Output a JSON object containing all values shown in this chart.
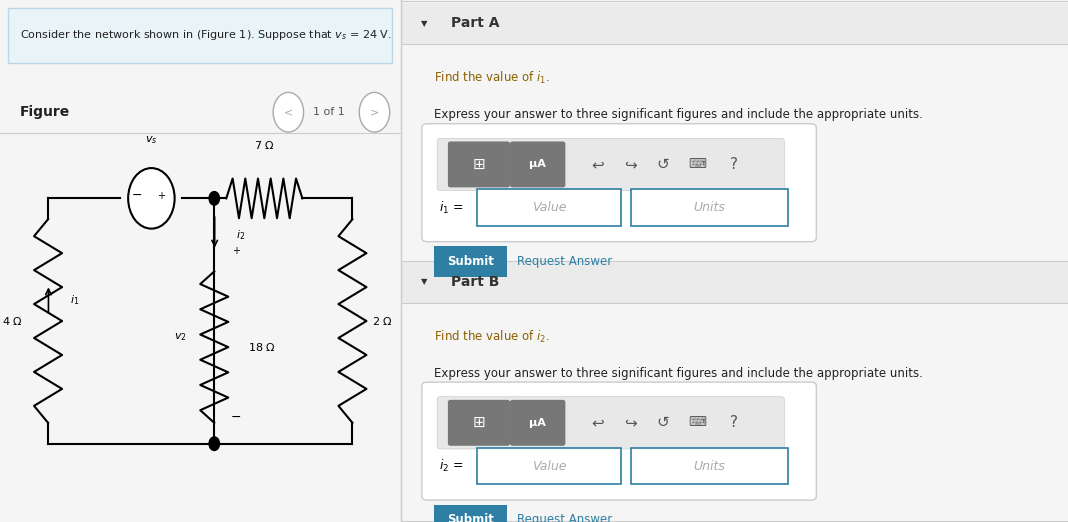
{
  "left_panel_bg": "#e8f4f8",
  "left_panel_border": "#b8d8e8",
  "figure_label": "Figure",
  "nav_text": "1 of 1",
  "right_bg": "#ffffff",
  "part_header_bg": "#ebebeb",
  "part_a_header": "Part A",
  "part_b_header": "Part B",
  "express_text": "Express your answer to three significant figures and include the appropriate units.",
  "submit_bg": "#2e7fa3",
  "submit_text_color": "#ffffff",
  "request_answer_color": "#2e7fa3",
  "input_border": "#2e7fa3",
  "value_placeholder_color": "#aaaaaa",
  "units_placeholder_color": "#aaaaaa",
  "toolbar_bg": "#777777",
  "divider_color": "#cccccc",
  "circuit_line_color": "#000000",
  "fig_bg": "#f5f5f5"
}
